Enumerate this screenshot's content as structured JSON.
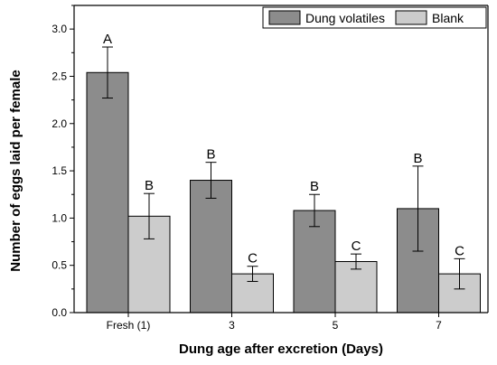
{
  "chart_data": {
    "type": "bar",
    "xlabel": "Dung age after excretion (Days)",
    "ylabel": "Number of eggs laid per female",
    "categories": [
      "Fresh (1)",
      "3",
      "5",
      "7"
    ],
    "ylim": [
      0,
      3.25
    ],
    "yticks": [
      "0.0",
      "0.5",
      "1.0",
      "1.5",
      "2.0",
      "2.5",
      "3.0"
    ],
    "legend_position": "top-right",
    "grid": false,
    "series": [
      {
        "name": "Dung volatiles",
        "color": "#8c8c8c",
        "values": [
          2.54,
          1.4,
          1.08,
          1.1
        ],
        "errors": [
          0.27,
          0.19,
          0.17,
          0.45
        ],
        "letters": [
          "A",
          "B",
          "B",
          "B"
        ]
      },
      {
        "name": "Blank",
        "color": "#cccccc",
        "values": [
          1.02,
          0.41,
          0.54,
          0.41
        ],
        "errors": [
          0.24,
          0.08,
          0.08,
          0.16
        ],
        "letters": [
          "B",
          "C",
          "C",
          "C"
        ]
      }
    ]
  }
}
